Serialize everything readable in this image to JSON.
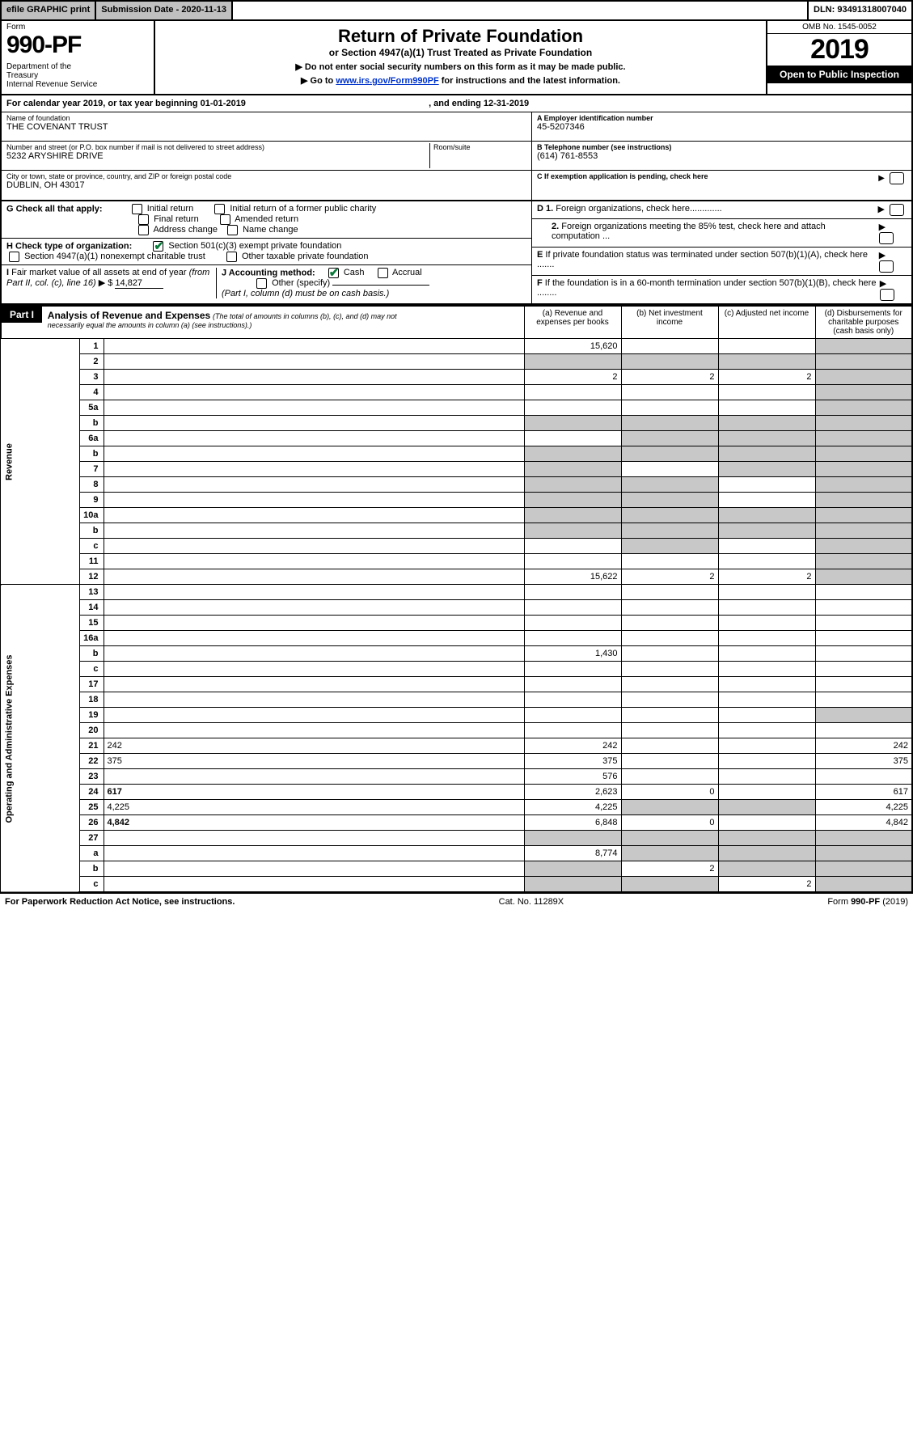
{
  "topbar": {
    "efile": "efile GRAPHIC print",
    "subdate_label": "Submission Date - 2020-11-13",
    "dln": "DLN: 93491318007040"
  },
  "header": {
    "form_label": "Form",
    "form_number": "990-PF",
    "dept": "Department of the Treasury\nInternal Revenue Service",
    "title": "Return of Private Foundation",
    "subtitle": "or Section 4947(a)(1) Trust Treated as Private Foundation",
    "instr1": "▶ Do not enter social security numbers on this form as it may be made public.",
    "instr2_pre": "▶ Go to ",
    "instr2_link": "www.irs.gov/Form990PF",
    "instr2_post": " for instructions and the latest information.",
    "omb": "OMB No. 1545-0052",
    "year": "2019",
    "open": "Open to Public Inspection"
  },
  "calyear": {
    "text_pre": "For calendar year 2019, or tax year beginning ",
    "begin": "01-01-2019",
    "mid": " , and ending ",
    "end": "12-31-2019"
  },
  "info": {
    "name_lbl": "Name of foundation",
    "name": "THE COVENANT TRUST",
    "addr_lbl": "Number and street (or P.O. box number if mail is not delivered to street address)",
    "addr": "5232 ARYSHIRE DRIVE",
    "room_lbl": "Room/suite",
    "city_lbl": "City or town, state or province, country, and ZIP or foreign postal code",
    "city": "DUBLIN, OH  43017",
    "a_lbl": "A Employer identification number",
    "a_val": "45-5207346",
    "b_lbl": "B Telephone number (see instructions)",
    "b_val": "(614) 761-8553",
    "c_lbl": "C  If exemption application is pending, check here",
    "g_lbl": "G Check all that apply:",
    "g_opts": [
      "Initial return",
      "Initial return of a former public charity",
      "Final return",
      "Amended return",
      "Address change",
      "Name change"
    ],
    "h_lbl": "H Check type of organization:",
    "h_opt1": "Section 501(c)(3) exempt private foundation",
    "h_opt2": "Section 4947(a)(1) nonexempt charitable trust",
    "h_opt3": "Other taxable private foundation",
    "i_lbl": "I Fair market value of all assets at end of year (from Part II, col. (c), line 16) ▶ $",
    "i_val": "14,827",
    "j_lbl": "J Accounting method:",
    "j_cash": "Cash",
    "j_accrual": "Accrual",
    "j_other": "Other (specify)",
    "j_note": "(Part I, column (d) must be on cash basis.)",
    "d1": "D 1. Foreign organizations, check here.............",
    "d2": "2. Foreign organizations meeting the 85% test, check here and attach computation ...",
    "e": "E  If private foundation status was terminated under section 507(b)(1)(A), check here .......",
    "f": "F  If the foundation is in a 60-month termination under section 507(b)(1)(B), check here ........"
  },
  "part1": {
    "label": "Part I",
    "title": "Analysis of Revenue and Expenses",
    "title_note": "(The total of amounts in columns (b), (c), and (d) may not necessarily equal the amounts in column (a) (see instructions).)",
    "col_a": "(a) Revenue and expenses per books",
    "col_b": "(b) Net investment income",
    "col_c": "(c) Adjusted net income",
    "col_d": "(d) Disbursements for charitable purposes (cash basis only)"
  },
  "sections": {
    "revenue": "Revenue",
    "expenses": "Operating and Administrative Expenses"
  },
  "rows": [
    {
      "n": "1",
      "d": "",
      "a": "15,620",
      "b": "",
      "c": "",
      "shade_d": true
    },
    {
      "n": "2",
      "d": "",
      "a": "",
      "b": "",
      "c": "",
      "shade_all": true
    },
    {
      "n": "3",
      "d": "",
      "a": "2",
      "b": "2",
      "c": "2",
      "shade_d": true
    },
    {
      "n": "4",
      "d": "",
      "a": "",
      "b": "",
      "c": "",
      "shade_d": true
    },
    {
      "n": "5a",
      "d": "",
      "a": "",
      "b": "",
      "c": "",
      "shade_d": true
    },
    {
      "n": "b",
      "d": "",
      "a": "",
      "b": "",
      "c": "",
      "shade_all": true
    },
    {
      "n": "6a",
      "d": "",
      "a": "",
      "b": "",
      "c": "",
      "shade_bcd": true
    },
    {
      "n": "b",
      "d": "",
      "a": "",
      "b": "",
      "c": "",
      "shade_all": true
    },
    {
      "n": "7",
      "d": "",
      "a": "",
      "b": "",
      "c": "",
      "shade_a": true,
      "shade_cd": true
    },
    {
      "n": "8",
      "d": "",
      "a": "",
      "b": "",
      "c": "",
      "shade_ab": true,
      "shade_d": true
    },
    {
      "n": "9",
      "d": "",
      "a": "",
      "b": "",
      "c": "",
      "shade_ab": true,
      "shade_d": true
    },
    {
      "n": "10a",
      "d": "",
      "a": "",
      "b": "",
      "c": "",
      "shade_all": true
    },
    {
      "n": "b",
      "d": "",
      "a": "",
      "b": "",
      "c": "",
      "shade_all": true
    },
    {
      "n": "c",
      "d": "",
      "a": "",
      "b": "",
      "c": "",
      "shade_b": true,
      "shade_d": true
    },
    {
      "n": "11",
      "d": "",
      "a": "",
      "b": "",
      "c": "",
      "shade_d": true
    },
    {
      "n": "12",
      "d": "",
      "a": "15,622",
      "b": "2",
      "c": "2",
      "bold": true,
      "shade_d": true
    }
  ],
  "exp_rows": [
    {
      "n": "13",
      "d": "",
      "a": "",
      "b": "",
      "c": ""
    },
    {
      "n": "14",
      "d": "",
      "a": "",
      "b": "",
      "c": ""
    },
    {
      "n": "15",
      "d": "",
      "a": "",
      "b": "",
      "c": ""
    },
    {
      "n": "16a",
      "d": "",
      "a": "",
      "b": "",
      "c": ""
    },
    {
      "n": "b",
      "d": "",
      "a": "1,430",
      "b": "",
      "c": ""
    },
    {
      "n": "c",
      "d": "",
      "a": "",
      "b": "",
      "c": ""
    },
    {
      "n": "17",
      "d": "",
      "a": "",
      "b": "",
      "c": ""
    },
    {
      "n": "18",
      "d": "",
      "a": "",
      "b": "",
      "c": ""
    },
    {
      "n": "19",
      "d": "",
      "a": "",
      "b": "",
      "c": "",
      "shade_d": true
    },
    {
      "n": "20",
      "d": "",
      "a": "",
      "b": "",
      "c": ""
    },
    {
      "n": "21",
      "d": "242",
      "a": "242",
      "b": "",
      "c": ""
    },
    {
      "n": "22",
      "d": "375",
      "a": "375",
      "b": "",
      "c": ""
    },
    {
      "n": "23",
      "d": "",
      "a": "576",
      "b": "",
      "c": ""
    },
    {
      "n": "24",
      "d": "617",
      "a": "2,623",
      "b": "0",
      "c": "",
      "bold": true
    },
    {
      "n": "25",
      "d": "4,225",
      "a": "4,225",
      "b": "",
      "c": "",
      "shade_bc": true
    },
    {
      "n": "26",
      "d": "4,842",
      "a": "6,848",
      "b": "0",
      "c": "",
      "bold": true
    },
    {
      "n": "27",
      "d": "",
      "a": "",
      "b": "",
      "c": "",
      "shade_all": true
    },
    {
      "n": "a",
      "d": "",
      "a": "8,774",
      "b": "",
      "c": "",
      "bold": true,
      "shade_bcd": true
    },
    {
      "n": "b",
      "d": "",
      "a": "",
      "b": "2",
      "c": "",
      "bold": true,
      "shade_a": true,
      "shade_cd": true
    },
    {
      "n": "c",
      "d": "",
      "a": "",
      "b": "",
      "c": "2",
      "bold": true,
      "shade_ab": true,
      "shade_d": true
    }
  ],
  "footer": {
    "left": "For Paperwork Reduction Act Notice, see instructions.",
    "mid": "Cat. No. 11289X",
    "right": "Form 990-PF (2019)"
  }
}
